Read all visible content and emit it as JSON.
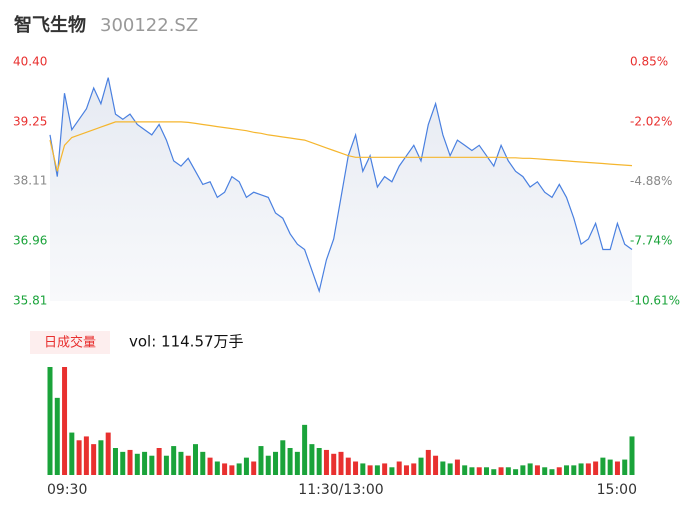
{
  "chart_data": {
    "type": "line",
    "title": "智飞生物",
    "subtitle": "300122.SZ",
    "x": [
      0,
      1,
      2,
      3,
      4,
      5,
      6,
      7,
      8,
      9,
      10,
      11,
      12,
      13,
      14,
      15,
      16,
      17,
      18,
      19,
      20,
      21,
      22,
      23,
      24,
      25,
      26,
      27,
      28,
      29,
      30,
      31,
      32,
      33,
      34,
      35,
      36,
      37,
      38,
      39,
      40,
      41,
      42,
      43,
      44,
      45,
      46,
      47,
      48,
      49,
      50,
      51,
      52,
      53,
      54,
      55,
      56,
      57,
      58,
      59,
      60,
      61,
      62,
      63,
      64,
      65,
      66,
      67,
      68,
      69,
      70,
      71,
      72,
      73,
      74,
      75,
      76,
      77,
      78,
      79,
      80
    ],
    "xlim": [
      0,
      80
    ],
    "xticks": [
      {
        "value": 0,
        "label": "09:30"
      },
      {
        "value": 40,
        "label": "11:30/13:00"
      },
      {
        "value": 80,
        "label": "15:00"
      }
    ],
    "ylim": [
      35.81,
      40.4
    ],
    "yticks": [
      35.81,
      36.96,
      38.11,
      39.25,
      {
        "value": 40.4,
        "label": "40.40"
      }
    ],
    "ytick_colors": [
      "#1aa33a",
      "#1aa33a",
      "#888888",
      "#e8302f",
      "#e8302f"
    ],
    "y2lim": [
      -10.61,
      0.85
    ],
    "y2ticks": [
      {
        "value": -10.61,
        "label": "-10.61%"
      },
      {
        "value": -7.74,
        "label": "-7.74%"
      },
      {
        "value": -4.88,
        "label": "-4.88%"
      },
      {
        "value": -2.02,
        "label": "-2.02%"
      },
      {
        "value": 0.85,
        "label": "0.85%"
      }
    ],
    "series": [
      {
        "color": "#4a80e0",
        "values": [
          39.0,
          38.2,
          39.8,
          39.1,
          39.3,
          39.5,
          39.9,
          39.6,
          40.1,
          39.4,
          39.3,
          39.4,
          39.2,
          39.1,
          39.0,
          39.2,
          38.9,
          38.5,
          38.4,
          38.55,
          38.3,
          38.05,
          38.1,
          37.8,
          37.9,
          38.2,
          38.1,
          37.8,
          37.9,
          37.85,
          37.8,
          37.5,
          37.4,
          37.1,
          36.9,
          36.8,
          36.4,
          36.0,
          36.6,
          37.0,
          37.8,
          38.6,
          39.0,
          38.3,
          38.6,
          38.0,
          38.2,
          38.1,
          38.4,
          38.6,
          38.8,
          38.5,
          39.2,
          39.6,
          39.0,
          38.6,
          38.9,
          38.8,
          38.7,
          38.8,
          38.6,
          38.4,
          38.8,
          38.5,
          38.3,
          38.2,
          38.0,
          38.1,
          37.9,
          37.8,
          38.05,
          37.8,
          37.4,
          36.9,
          37.0,
          37.3,
          36.8,
          36.8,
          37.3,
          36.9,
          36.8
        ]
      },
      {
        "color": "#f5b62e",
        "values": [
          38.9,
          38.3,
          38.8,
          38.95,
          39.0,
          39.05,
          39.1,
          39.15,
          39.2,
          39.25,
          39.25,
          39.25,
          39.25,
          39.25,
          39.25,
          39.25,
          39.25,
          39.25,
          39.25,
          39.24,
          39.22,
          39.2,
          39.18,
          39.16,
          39.14,
          39.12,
          39.1,
          39.08,
          39.05,
          39.03,
          39.0,
          38.98,
          38.96,
          38.94,
          38.92,
          38.9,
          38.85,
          38.8,
          38.75,
          38.7,
          38.65,
          38.6,
          38.57,
          38.57,
          38.57,
          38.57,
          38.57,
          38.57,
          38.57,
          38.57,
          38.57,
          38.57,
          38.57,
          38.57,
          38.57,
          38.57,
          38.57,
          38.57,
          38.57,
          38.57,
          38.57,
          38.57,
          38.57,
          38.56,
          38.56,
          38.55,
          38.55,
          38.54,
          38.53,
          38.52,
          38.51,
          38.5,
          38.49,
          38.48,
          38.47,
          38.46,
          38.45,
          38.44,
          38.43,
          38.42,
          38.41
        ]
      }
    ],
    "volume": {
      "label": "日成交量",
      "summary": "vol: 114.57万手",
      "values": [
        5.6,
        4.0,
        5.6,
        2.2,
        1.8,
        2.0,
        1.6,
        1.8,
        2.2,
        1.4,
        1.2,
        1.3,
        1.1,
        1.2,
        1.0,
        1.4,
        1.0,
        1.5,
        1.2,
        1.0,
        1.6,
        1.2,
        0.9,
        0.7,
        0.6,
        0.5,
        0.6,
        0.9,
        0.7,
        1.5,
        1.0,
        1.2,
        1.8,
        1.4,
        1.2,
        2.6,
        1.6,
        1.4,
        1.3,
        1.1,
        1.2,
        0.9,
        0.7,
        0.6,
        0.5,
        0.5,
        0.6,
        0.4,
        0.7,
        0.5,
        0.6,
        0.9,
        1.3,
        1.0,
        0.7,
        0.6,
        0.8,
        0.5,
        0.4,
        0.4,
        0.4,
        0.3,
        0.4,
        0.4,
        0.3,
        0.5,
        0.6,
        0.5,
        0.4,
        0.3,
        0.4,
        0.5,
        0.5,
        0.6,
        0.6,
        0.7,
        0.9,
        0.8,
        0.7,
        0.8,
        2.0
      ],
      "colors": [
        "#1aa33a",
        "#1aa33a",
        "#e8302f",
        "#1aa33a",
        "#e8302f",
        "#e8302f",
        "#e8302f",
        "#1aa33a",
        "#e8302f",
        "#1aa33a",
        "#1aa33a",
        "#e8302f",
        "#1aa33a",
        "#1aa33a",
        "#1aa33a",
        "#e8302f",
        "#1aa33a",
        "#1aa33a",
        "#1aa33a",
        "#e8302f",
        "#1aa33a",
        "#1aa33a",
        "#e8302f",
        "#1aa33a",
        "#e8302f",
        "#e8302f",
        "#1aa33a",
        "#1aa33a",
        "#e8302f",
        "#1aa33a",
        "#1aa33a",
        "#1aa33a",
        "#1aa33a",
        "#1aa33a",
        "#1aa33a",
        "#1aa33a",
        "#1aa33a",
        "#1aa33a",
        "#e8302f",
        "#e8302f",
        "#e8302f",
        "#e8302f",
        "#e8302f",
        "#1aa33a",
        "#e8302f",
        "#1aa33a",
        "#e8302f",
        "#1aa33a",
        "#e8302f",
        "#e8302f",
        "#e8302f",
        "#1aa33a",
        "#e8302f",
        "#e8302f",
        "#1aa33a",
        "#1aa33a",
        "#e8302f",
        "#1aa33a",
        "#1aa33a",
        "#e8302f",
        "#1aa33a",
        "#1aa33a",
        "#e8302f",
        "#1aa33a",
        "#1aa33a",
        "#1aa33a",
        "#1aa33a",
        "#e8302f",
        "#1aa33a",
        "#1aa33a",
        "#e8302f",
        "#1aa33a",
        "#1aa33a",
        "#1aa33a",
        "#e8302f",
        "#e8302f",
        "#1aa33a",
        "#1aa33a",
        "#e8302f",
        "#1aa33a",
        "#1aa33a"
      ]
    }
  }
}
